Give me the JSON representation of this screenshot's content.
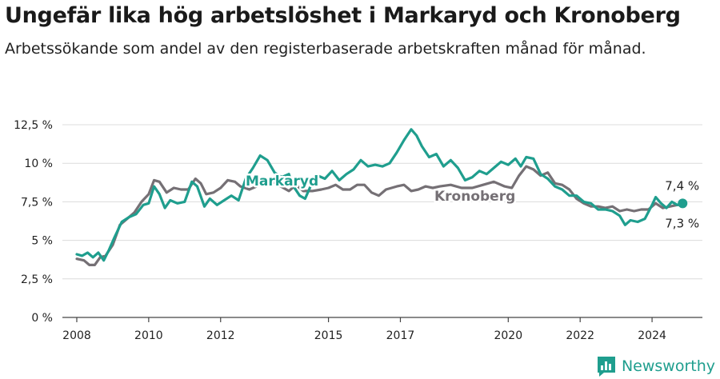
{
  "header": {
    "title": "Ungefär lika hög arbetslöshet i Markaryd och Kronoberg",
    "subtitle": "Arbetssökande som andel av den registerbaserade arbetskraften månad för månad."
  },
  "brand": {
    "name": "Newsworthy",
    "icon": "newsworthy-logo-icon",
    "color": "#1f9e8e"
  },
  "chart_data": {
    "type": "line",
    "title": "Ungefär lika hög arbetslöshet i Markaryd och Kronoberg",
    "subtitle": "Arbetssökande som andel av den registerbaserade arbetskraften månad för månad.",
    "xlim": [
      2007.6,
      2025.4
    ],
    "ylim": [
      0,
      12.5
    ],
    "x_ticks": [
      2008,
      2010,
      2012,
      2015,
      2017,
      2020,
      2022,
      2024
    ],
    "x_tick_labels": [
      "2008",
      "2010",
      "2012",
      "2015",
      "2017",
      "2020",
      "2022",
      "2024"
    ],
    "y_ticks": [
      0,
      2.5,
      5,
      7.5,
      10,
      12.5
    ],
    "y_tick_labels": [
      "0 %",
      "2,5 %",
      "5 %",
      "7,5 %",
      "10 %",
      "12,5 %"
    ],
    "grid": true,
    "series": [
      {
        "name": "Kronoberg",
        "color": "#757075",
        "last_value_label": "7,3 %",
        "points": [
          [
            2008.0,
            3.8
          ],
          [
            2008.2,
            3.7
          ],
          [
            2008.35,
            3.4
          ],
          [
            2008.5,
            3.4
          ],
          [
            2008.65,
            3.9
          ],
          [
            2008.8,
            4.0
          ],
          [
            2009.0,
            4.7
          ],
          [
            2009.2,
            6.0
          ],
          [
            2009.4,
            6.4
          ],
          [
            2009.6,
            6.8
          ],
          [
            2009.8,
            7.5
          ],
          [
            2010.0,
            8.0
          ],
          [
            2010.15,
            8.9
          ],
          [
            2010.3,
            8.8
          ],
          [
            2010.5,
            8.1
          ],
          [
            2010.7,
            8.4
          ],
          [
            2010.9,
            8.3
          ],
          [
            2011.1,
            8.3
          ],
          [
            2011.3,
            9.0
          ],
          [
            2011.45,
            8.7
          ],
          [
            2011.6,
            8.0
          ],
          [
            2011.8,
            8.1
          ],
          [
            2012.0,
            8.4
          ],
          [
            2012.2,
            8.9
          ],
          [
            2012.4,
            8.8
          ],
          [
            2012.55,
            8.5
          ],
          [
            2012.8,
            8.3
          ],
          [
            2013.0,
            8.5
          ],
          [
            2013.3,
            9.0
          ],
          [
            2013.6,
            8.6
          ],
          [
            2013.9,
            8.2
          ],
          [
            2014.1,
            8.6
          ],
          [
            2014.3,
            8.2
          ],
          [
            2014.55,
            8.2
          ],
          [
            2014.8,
            8.3
          ],
          [
            2015.0,
            8.4
          ],
          [
            2015.2,
            8.6
          ],
          [
            2015.4,
            8.3
          ],
          [
            2015.6,
            8.3
          ],
          [
            2015.8,
            8.6
          ],
          [
            2016.0,
            8.6
          ],
          [
            2016.2,
            8.1
          ],
          [
            2016.4,
            7.9
          ],
          [
            2016.6,
            8.3
          ],
          [
            2016.9,
            8.5
          ],
          [
            2017.1,
            8.6
          ],
          [
            2017.3,
            8.2
          ],
          [
            2017.5,
            8.3
          ],
          [
            2017.7,
            8.5
          ],
          [
            2017.9,
            8.4
          ],
          [
            2018.1,
            8.5
          ],
          [
            2018.4,
            8.6
          ],
          [
            2018.7,
            8.4
          ],
          [
            2019.0,
            8.4
          ],
          [
            2019.3,
            8.6
          ],
          [
            2019.6,
            8.8
          ],
          [
            2019.9,
            8.5
          ],
          [
            2020.1,
            8.4
          ],
          [
            2020.3,
            9.2
          ],
          [
            2020.5,
            9.8
          ],
          [
            2020.7,
            9.6
          ],
          [
            2020.9,
            9.2
          ],
          [
            2021.1,
            9.4
          ],
          [
            2021.3,
            8.7
          ],
          [
            2021.5,
            8.6
          ],
          [
            2021.7,
            8.3
          ],
          [
            2021.9,
            7.7
          ],
          [
            2022.1,
            7.4
          ],
          [
            2022.3,
            7.2
          ],
          [
            2022.5,
            7.2
          ],
          [
            2022.7,
            7.1
          ],
          [
            2022.9,
            7.2
          ],
          [
            2023.1,
            6.9
          ],
          [
            2023.3,
            7.0
          ],
          [
            2023.5,
            6.9
          ],
          [
            2023.7,
            7.0
          ],
          [
            2023.9,
            7.0
          ],
          [
            2024.1,
            7.4
          ],
          [
            2024.3,
            7.1
          ],
          [
            2024.5,
            7.2
          ],
          [
            2024.7,
            7.3
          ],
          [
            2024.85,
            7.3
          ]
        ]
      },
      {
        "name": "Markaryd",
        "color": "#1f9e8e",
        "last_value_label": "7,4 %",
        "points": [
          [
            2008.0,
            4.1
          ],
          [
            2008.15,
            4.0
          ],
          [
            2008.3,
            4.2
          ],
          [
            2008.45,
            3.9
          ],
          [
            2008.6,
            4.2
          ],
          [
            2008.75,
            3.7
          ],
          [
            2008.9,
            4.4
          ],
          [
            2009.05,
            5.2
          ],
          [
            2009.25,
            6.2
          ],
          [
            2009.45,
            6.5
          ],
          [
            2009.65,
            6.7
          ],
          [
            2009.85,
            7.3
          ],
          [
            2010.0,
            7.4
          ],
          [
            2010.15,
            8.5
          ],
          [
            2010.3,
            8.0
          ],
          [
            2010.45,
            7.1
          ],
          [
            2010.6,
            7.6
          ],
          [
            2010.8,
            7.4
          ],
          [
            2011.0,
            7.5
          ],
          [
            2011.2,
            8.8
          ],
          [
            2011.35,
            8.5
          ],
          [
            2011.55,
            7.2
          ],
          [
            2011.7,
            7.7
          ],
          [
            2011.9,
            7.3
          ],
          [
            2012.1,
            7.6
          ],
          [
            2012.3,
            7.9
          ],
          [
            2012.5,
            7.6
          ],
          [
            2012.7,
            9.0
          ],
          [
            2012.9,
            9.7
          ],
          [
            2013.1,
            10.5
          ],
          [
            2013.3,
            10.2
          ],
          [
            2013.5,
            9.4
          ],
          [
            2013.7,
            9.1
          ],
          [
            2013.9,
            9.3
          ],
          [
            2014.0,
            8.6
          ],
          [
            2014.2,
            7.9
          ],
          [
            2014.35,
            7.7
          ],
          [
            2014.5,
            8.5
          ],
          [
            2014.7,
            9.2
          ],
          [
            2014.9,
            9.0
          ],
          [
            2015.1,
            9.5
          ],
          [
            2015.3,
            8.9
          ],
          [
            2015.5,
            9.3
          ],
          [
            2015.7,
            9.6
          ],
          [
            2015.9,
            10.2
          ],
          [
            2016.1,
            9.8
          ],
          [
            2016.3,
            9.9
          ],
          [
            2016.5,
            9.8
          ],
          [
            2016.7,
            10.0
          ],
          [
            2016.9,
            10.7
          ],
          [
            2017.1,
            11.5
          ],
          [
            2017.3,
            12.2
          ],
          [
            2017.45,
            11.8
          ],
          [
            2017.6,
            11.1
          ],
          [
            2017.8,
            10.4
          ],
          [
            2018.0,
            10.6
          ],
          [
            2018.2,
            9.8
          ],
          [
            2018.4,
            10.2
          ],
          [
            2018.6,
            9.7
          ],
          [
            2018.8,
            8.9
          ],
          [
            2019.0,
            9.1
          ],
          [
            2019.2,
            9.5
          ],
          [
            2019.4,
            9.3
          ],
          [
            2019.6,
            9.7
          ],
          [
            2019.8,
            10.1
          ],
          [
            2020.0,
            9.9
          ],
          [
            2020.2,
            10.3
          ],
          [
            2020.35,
            9.8
          ],
          [
            2020.5,
            10.4
          ],
          [
            2020.7,
            10.3
          ],
          [
            2020.9,
            9.3
          ],
          [
            2021.1,
            9.0
          ],
          [
            2021.3,
            8.5
          ],
          [
            2021.5,
            8.3
          ],
          [
            2021.7,
            7.9
          ],
          [
            2021.9,
            7.9
          ],
          [
            2022.1,
            7.5
          ],
          [
            2022.3,
            7.4
          ],
          [
            2022.5,
            7.0
          ],
          [
            2022.7,
            7.0
          ],
          [
            2022.9,
            6.9
          ],
          [
            2023.1,
            6.6
          ],
          [
            2023.25,
            6.0
          ],
          [
            2023.4,
            6.3
          ],
          [
            2023.6,
            6.2
          ],
          [
            2023.8,
            6.4
          ],
          [
            2024.0,
            7.3
          ],
          [
            2024.1,
            7.8
          ],
          [
            2024.25,
            7.4
          ],
          [
            2024.4,
            7.1
          ],
          [
            2024.55,
            7.5
          ],
          [
            2024.7,
            7.3
          ],
          [
            2024.85,
            7.4
          ]
        ]
      }
    ]
  }
}
